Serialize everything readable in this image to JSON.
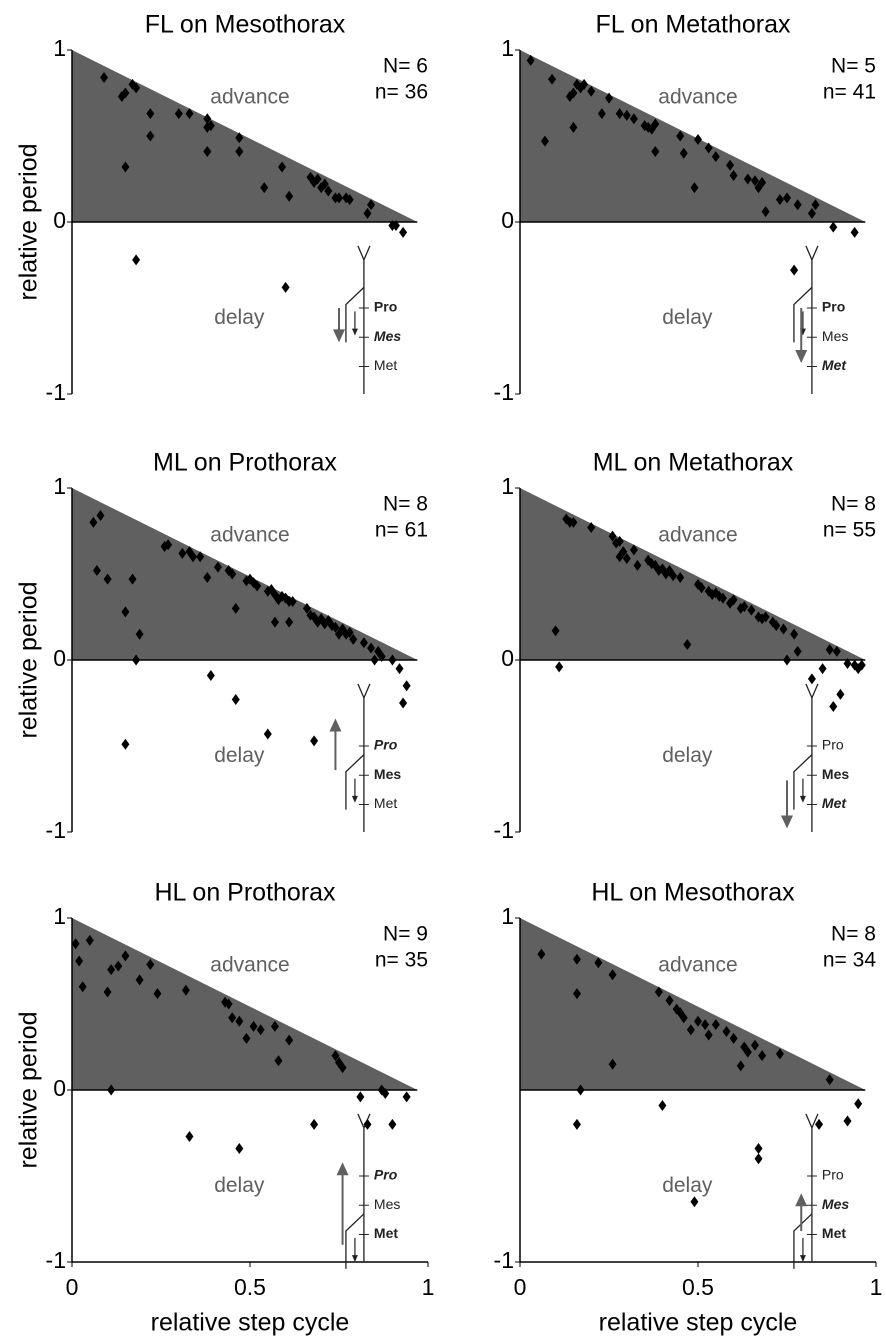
{
  "chart_data": [
    {
      "type": "scatter",
      "title": "FL on Mesothorax",
      "ylabel": "relative period",
      "annotations": [
        "advance",
        "delay",
        "N= 6",
        "n= 36"
      ],
      "inset_labels": [
        "Pro",
        "Mes",
        "Met"
      ],
      "xlim": [
        0,
        1
      ],
      "ylim": [
        -1,
        1
      ],
      "yticks": [
        -1,
        0,
        1
      ],
      "color": "#000000",
      "area_color": "#606060",
      "x": [
        0.09,
        0.14,
        0.15,
        0.17,
        0.18,
        0.22,
        0.22,
        0.15,
        0.18,
        0.3,
        0.33,
        0.38,
        0.38,
        0.38,
        0.39,
        0.47,
        0.47,
        0.54,
        0.59,
        0.61,
        0.67,
        0.68,
        0.69,
        0.7,
        0.71,
        0.72,
        0.74,
        0.75,
        0.77,
        0.78,
        0.83,
        0.84,
        0.9,
        0.91,
        0.93,
        0.6
      ],
      "y": [
        0.84,
        0.73,
        0.75,
        0.8,
        0.78,
        0.63,
        0.5,
        0.32,
        -0.22,
        0.63,
        0.63,
        0.6,
        0.55,
        0.41,
        0.56,
        0.49,
        0.41,
        0.2,
        0.32,
        0.15,
        0.26,
        0.23,
        0.25,
        0.2,
        0.22,
        0.18,
        0.14,
        0.14,
        0.14,
        0.13,
        0.05,
        0.1,
        -0.02,
        -0.02,
        -0.06,
        -0.38
      ]
    },
    {
      "type": "scatter",
      "title": "FL on Metathorax",
      "annotations": [
        "advance",
        "delay",
        "N= 5",
        "n= 41"
      ],
      "inset_labels": [
        "Pro",
        "Mes",
        "Met"
      ],
      "xlim": [
        0,
        1
      ],
      "ylim": [
        -1,
        1
      ],
      "yticks": [
        -1,
        0,
        1
      ],
      "color": "#000000",
      "area_color": "#606060",
      "x": [
        0.03,
        0.07,
        0.09,
        0.14,
        0.15,
        0.16,
        0.17,
        0.18,
        0.2,
        0.15,
        0.23,
        0.25,
        0.28,
        0.3,
        0.32,
        0.35,
        0.36,
        0.37,
        0.38,
        0.38,
        0.45,
        0.46,
        0.49,
        0.5,
        0.53,
        0.55,
        0.59,
        0.6,
        0.64,
        0.66,
        0.67,
        0.68,
        0.69,
        0.73,
        0.75,
        0.78,
        0.82,
        0.83,
        0.88,
        0.94,
        0.77
      ],
      "y": [
        0.94,
        0.47,
        0.83,
        0.73,
        0.75,
        0.8,
        0.78,
        0.8,
        0.76,
        0.55,
        0.63,
        0.72,
        0.63,
        0.62,
        0.6,
        0.56,
        0.55,
        0.54,
        0.57,
        0.41,
        0.5,
        0.4,
        0.2,
        0.48,
        0.43,
        0.38,
        0.33,
        0.27,
        0.25,
        0.24,
        0.2,
        0.23,
        0.06,
        0.13,
        0.14,
        0.1,
        0.05,
        0.1,
        -0.03,
        -0.06,
        -0.28
      ]
    },
    {
      "type": "scatter",
      "title": "ML on Prothorax",
      "ylabel": "relative period",
      "annotations": [
        "advance",
        "delay",
        "N= 8",
        "n= 61"
      ],
      "inset_labels": [
        "Pro",
        "Mes",
        "Met"
      ],
      "xlim": [
        0,
        1
      ],
      "ylim": [
        -1,
        1
      ],
      "yticks": [
        -1,
        0,
        1
      ],
      "color": "#000000",
      "area_color": "#606060",
      "x": [
        0.06,
        0.08,
        0.07,
        0.1,
        0.15,
        0.17,
        0.18,
        0.15,
        0.19,
        0.26,
        0.27,
        0.31,
        0.33,
        0.34,
        0.36,
        0.38,
        0.39,
        0.41,
        0.44,
        0.45,
        0.46,
        0.46,
        0.49,
        0.5,
        0.51,
        0.52,
        0.55,
        0.56,
        0.57,
        0.57,
        0.58,
        0.59,
        0.6,
        0.61,
        0.61,
        0.62,
        0.55,
        0.66,
        0.67,
        0.68,
        0.69,
        0.7,
        0.71,
        0.72,
        0.73,
        0.74,
        0.75,
        0.76,
        0.77,
        0.78,
        0.79,
        0.82,
        0.84,
        0.85,
        0.86,
        0.87,
        0.9,
        0.92,
        0.93,
        0.94,
        0.68
      ],
      "y": [
        0.8,
        0.84,
        0.52,
        0.47,
        0.28,
        0.47,
        0.0,
        -0.49,
        0.15,
        0.66,
        0.67,
        0.62,
        0.63,
        0.6,
        0.6,
        0.48,
        -0.09,
        0.54,
        0.52,
        0.5,
        0.3,
        -0.23,
        0.46,
        0.47,
        0.45,
        0.43,
        0.4,
        0.41,
        0.38,
        0.22,
        0.35,
        0.37,
        0.36,
        0.22,
        0.34,
        0.34,
        -0.43,
        0.3,
        0.26,
        0.25,
        0.22,
        0.24,
        0.21,
        0.23,
        0.2,
        0.19,
        0.15,
        0.18,
        0.15,
        0.16,
        0.12,
        0.1,
        0.07,
        0.0,
        0.05,
        0.02,
        0.0,
        -0.05,
        -0.25,
        -0.15,
        -0.47
      ]
    },
    {
      "type": "scatter",
      "title": "ML on Metathorax",
      "annotations": [
        "advance",
        "delay",
        "N= 8",
        "n= 55"
      ],
      "inset_labels": [
        "Pro",
        "Mes",
        "Met"
      ],
      "xlim": [
        0,
        1
      ],
      "ylim": [
        -1,
        1
      ],
      "yticks": [
        -1,
        0,
        1
      ],
      "color": "#000000",
      "area_color": "#606060",
      "x": [
        0.1,
        0.11,
        0.13,
        0.14,
        0.15,
        0.2,
        0.26,
        0.27,
        0.28,
        0.28,
        0.29,
        0.3,
        0.32,
        0.33,
        0.36,
        0.37,
        0.38,
        0.39,
        0.4,
        0.41,
        0.42,
        0.43,
        0.45,
        0.47,
        0.5,
        0.51,
        0.53,
        0.54,
        0.55,
        0.56,
        0.57,
        0.59,
        0.6,
        0.62,
        0.63,
        0.65,
        0.67,
        0.68,
        0.69,
        0.71,
        0.72,
        0.74,
        0.75,
        0.77,
        0.78,
        0.82,
        0.85,
        0.88,
        0.87,
        0.89,
        0.9,
        0.92,
        0.94,
        0.95,
        0.96
      ],
      "y": [
        0.17,
        -0.04,
        0.82,
        0.8,
        0.8,
        0.77,
        0.72,
        0.68,
        0.69,
        0.6,
        0.63,
        0.59,
        0.64,
        0.55,
        0.58,
        0.56,
        0.55,
        0.52,
        0.53,
        0.5,
        0.52,
        0.49,
        0.48,
        0.09,
        0.44,
        0.42,
        0.4,
        0.38,
        0.39,
        0.37,
        0.36,
        0.33,
        0.35,
        0.3,
        0.31,
        0.29,
        0.25,
        0.24,
        0.25,
        0.22,
        0.2,
        0.18,
        0.0,
        0.15,
        0.05,
        -0.11,
        -0.05,
        -0.27,
        0.06,
        0.05,
        -0.2,
        -0.02,
        -0.03,
        -0.05,
        -0.03
      ]
    },
    {
      "type": "scatter",
      "title": "HL on Prothorax",
      "ylabel": "relative period",
      "xlabel": "relative step cycle",
      "annotations": [
        "advance",
        "delay",
        "N= 9",
        "n= 35"
      ],
      "inset_labels": [
        "Pro",
        "Mes",
        "Met"
      ],
      "xlim": [
        0,
        1
      ],
      "ylim": [
        -1,
        1
      ],
      "yticks": [
        -1,
        0,
        1
      ],
      "xticks": [
        0,
        0.5,
        1
      ],
      "color": "#000000",
      "area_color": "#606060",
      "x": [
        0.01,
        0.02,
        0.03,
        0.05,
        0.1,
        0.11,
        0.11,
        0.13,
        0.15,
        0.19,
        0.22,
        0.24,
        0.32,
        0.33,
        0.43,
        0.44,
        0.45,
        0.47,
        0.47,
        0.49,
        0.51,
        0.53,
        0.57,
        0.58,
        0.61,
        0.68,
        0.74,
        0.75,
        0.76,
        0.81,
        0.83,
        0.87,
        0.9,
        0.94,
        0.88
      ],
      "y": [
        0.85,
        0.75,
        0.6,
        0.87,
        0.57,
        0.7,
        0.0,
        0.72,
        0.78,
        0.64,
        0.73,
        0.56,
        0.58,
        -0.27,
        0.51,
        0.5,
        0.42,
        0.4,
        -0.34,
        0.3,
        0.37,
        0.35,
        0.37,
        0.17,
        0.29,
        -0.2,
        0.2,
        0.16,
        0.13,
        -0.04,
        -0.2,
        0.0,
        -0.2,
        -0.04,
        -0.02
      ]
    },
    {
      "type": "scatter",
      "title": "HL on Mesothorax",
      "xlabel": "relative step cycle",
      "annotations": [
        "advance",
        "delay",
        "N= 8",
        "n= 34"
      ],
      "inset_labels": [
        "Pro",
        "Mes",
        "Met"
      ],
      "xlim": [
        0,
        1
      ],
      "ylim": [
        -1,
        1
      ],
      "yticks": [
        -1,
        1
      ],
      "xticks": [
        0,
        0.5,
        1
      ],
      "color": "#000000",
      "area_color": "#606060",
      "x": [
        0.06,
        0.16,
        0.16,
        0.17,
        0.16,
        0.22,
        0.26,
        0.26,
        0.39,
        0.4,
        0.42,
        0.44,
        0.45,
        0.46,
        0.48,
        0.49,
        0.5,
        0.52,
        0.53,
        0.55,
        0.58,
        0.6,
        0.62,
        0.63,
        0.64,
        0.66,
        0.67,
        0.67,
        0.68,
        0.73,
        0.87,
        0.84,
        0.92,
        0.95
      ],
      "y": [
        0.79,
        0.76,
        0.56,
        0.0,
        -0.2,
        0.74,
        0.67,
        0.15,
        0.57,
        -0.09,
        0.52,
        0.47,
        0.45,
        0.42,
        0.35,
        -0.65,
        0.4,
        0.38,
        0.32,
        0.38,
        0.34,
        0.3,
        0.14,
        0.25,
        0.22,
        0.26,
        -0.34,
        -0.4,
        0.2,
        0.21,
        0.06,
        -0.2,
        -0.18,
        -0.08
      ]
    }
  ]
}
